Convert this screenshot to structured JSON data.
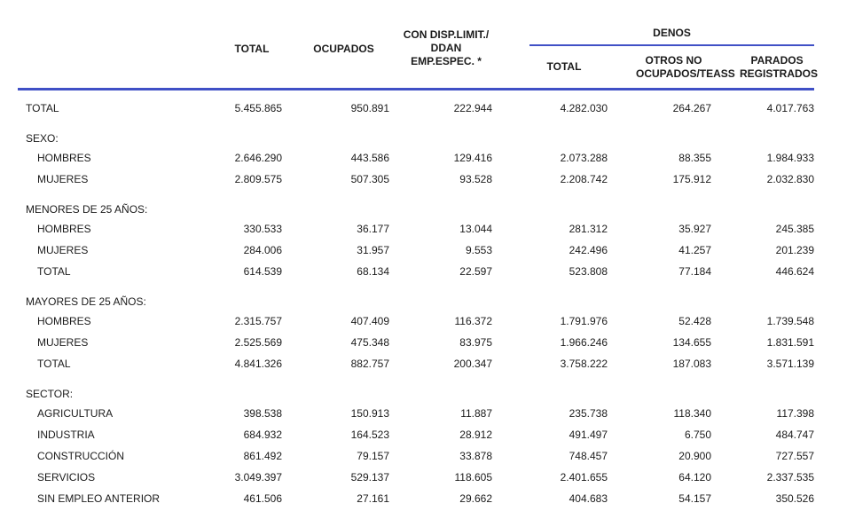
{
  "colors": {
    "accent_rule": "#4050c6",
    "text": "#1b1b1b",
    "background": "#ffffff"
  },
  "table": {
    "headers": {
      "total": "TOTAL",
      "ocupados": "OCUPADOS",
      "con_disp_line1": "CON DISP.LIMIT./",
      "con_disp_line2": "DDAN EMP.ESPEC. *",
      "denos_group": "DENOS",
      "denos_total": "TOTAL",
      "otros_line1": "OTROS NO",
      "otros_line2": "OCUPADOS/TEASS",
      "parados_line1": "PARADOS",
      "parados_line2": "REGISTRADOS"
    },
    "rows": [
      {
        "type": "data",
        "indent": false,
        "label": "TOTAL",
        "values": [
          "5.455.865",
          "950.891",
          "222.944",
          "4.282.030",
          "264.267",
          "4.017.763"
        ]
      },
      {
        "type": "section",
        "label": "SEXO:"
      },
      {
        "type": "data",
        "indent": true,
        "label": "HOMBRES",
        "values": [
          "2.646.290",
          "443.586",
          "129.416",
          "2.073.288",
          "88.355",
          "1.984.933"
        ]
      },
      {
        "type": "data",
        "indent": true,
        "label": "MUJERES",
        "values": [
          "2.809.575",
          "507.305",
          "93.528",
          "2.208.742",
          "175.912",
          "2.032.830"
        ]
      },
      {
        "type": "section",
        "label": "MENORES DE 25 AÑOS:"
      },
      {
        "type": "data",
        "indent": true,
        "label": "HOMBRES",
        "values": [
          "330.533",
          "36.177",
          "13.044",
          "281.312",
          "35.927",
          "245.385"
        ]
      },
      {
        "type": "data",
        "indent": true,
        "label": "MUJERES",
        "values": [
          "284.006",
          "31.957",
          "9.553",
          "242.496",
          "41.257",
          "201.239"
        ]
      },
      {
        "type": "data",
        "indent": true,
        "label": "TOTAL",
        "values": [
          "614.539",
          "68.134",
          "22.597",
          "523.808",
          "77.184",
          "446.624"
        ]
      },
      {
        "type": "section",
        "label": "MAYORES DE 25 AÑOS:"
      },
      {
        "type": "data",
        "indent": true,
        "label": "HOMBRES",
        "values": [
          "2.315.757",
          "407.409",
          "116.372",
          "1.791.976",
          "52.428",
          "1.739.548"
        ]
      },
      {
        "type": "data",
        "indent": true,
        "label": "MUJERES",
        "values": [
          "2.525.569",
          "475.348",
          "83.975",
          "1.966.246",
          "134.655",
          "1.831.591"
        ]
      },
      {
        "type": "data",
        "indent": true,
        "label": "TOTAL",
        "values": [
          "4.841.326",
          "882.757",
          "200.347",
          "3.758.222",
          "187.083",
          "3.571.139"
        ]
      },
      {
        "type": "section",
        "label": "SECTOR:"
      },
      {
        "type": "data",
        "indent": true,
        "label": "AGRICULTURA",
        "values": [
          "398.538",
          "150.913",
          "11.887",
          "235.738",
          "118.340",
          "117.398"
        ]
      },
      {
        "type": "data",
        "indent": true,
        "label": "INDUSTRIA",
        "values": [
          "684.932",
          "164.523",
          "28.912",
          "491.497",
          "6.750",
          "484.747"
        ]
      },
      {
        "type": "data",
        "indent": true,
        "label": "CONSTRUCCIÓN",
        "values": [
          "861.492",
          "79.157",
          "33.878",
          "748.457",
          "20.900",
          "727.557"
        ]
      },
      {
        "type": "data",
        "indent": true,
        "label": "SERVICIOS",
        "values": [
          "3.049.397",
          "529.137",
          "118.605",
          "2.401.655",
          "64.120",
          "2.337.535"
        ]
      },
      {
        "type": "data",
        "indent": true,
        "label": "SIN EMPLEO ANTERIOR",
        "values": [
          "461.506",
          "27.161",
          "29.662",
          "404.683",
          "54.157",
          "350.526"
        ]
      }
    ]
  }
}
